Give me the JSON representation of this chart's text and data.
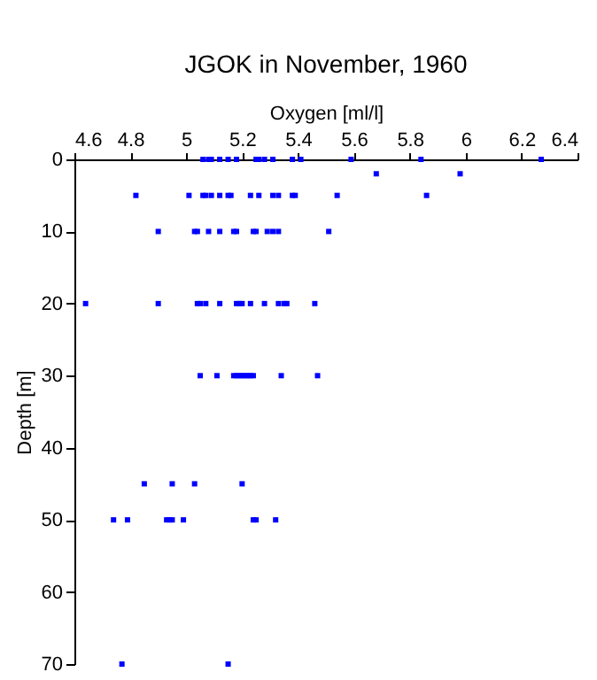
{
  "chart_data": {
    "type": "scatter",
    "title": "JGOK in November, 1960",
    "xlabel": "Oxygen [ml/l]",
    "ylabel": "Depth [m]",
    "xlim": [
      4.6,
      6.4
    ],
    "xticks": [
      4.6,
      4.8,
      5,
      5.2,
      5.4,
      5.6,
      5.8,
      6,
      6.2,
      6.4
    ],
    "ylim": [
      70,
      0
    ],
    "yticks": [
      0,
      10,
      20,
      30,
      40,
      50,
      60,
      70
    ],
    "grid": false,
    "marker": "square",
    "series": [
      {
        "color": "#0000ff",
        "x": [
          5.06,
          5.08,
          5.09,
          5.12,
          5.15,
          5.18,
          5.25,
          5.26,
          5.28,
          5.31,
          5.38,
          5.41,
          5.59,
          5.84,
          6.27,
          5.68,
          5.98,
          4.82,
          5.01,
          5.06,
          5.07,
          5.09,
          5.12,
          5.15,
          5.16,
          5.23,
          5.26,
          5.31,
          5.33,
          5.38,
          5.39,
          5.54,
          5.86,
          4.9,
          5.03,
          5.04,
          5.08,
          5.12,
          5.17,
          5.18,
          5.24,
          5.25,
          5.29,
          5.31,
          5.33,
          5.51,
          4.64,
          4.9,
          5.04,
          5.05,
          5.07,
          5.12,
          5.18,
          5.19,
          5.2,
          5.23,
          5.28,
          5.33,
          5.35,
          5.36,
          5.46,
          5.05,
          5.11,
          5.17,
          5.18,
          5.19,
          5.2,
          5.21,
          5.22,
          5.23,
          5.24,
          5.34,
          5.47,
          4.85,
          4.95,
          5.03,
          5.2,
          4.74,
          4.79,
          4.93,
          4.94,
          4.95,
          4.99,
          5.24,
          5.25,
          5.32,
          4.77,
          5.15
        ],
        "values": [
          0,
          0,
          0,
          0,
          0,
          0,
          0,
          0,
          0,
          0,
          0,
          0,
          0,
          0,
          0,
          2,
          2,
          5,
          5,
          5,
          5,
          5,
          5,
          5,
          5,
          5,
          5,
          5,
          5,
          5,
          5,
          5,
          5,
          10,
          10,
          10,
          10,
          10,
          10,
          10,
          10,
          10,
          10,
          10,
          10,
          10,
          20,
          20,
          20,
          20,
          20,
          20,
          20,
          20,
          20,
          20,
          20,
          20,
          20,
          20,
          20,
          30,
          30,
          30,
          30,
          30,
          30,
          30,
          30,
          30,
          30,
          30,
          30,
          45,
          45,
          45,
          45,
          50,
          50,
          50,
          50,
          50,
          50,
          50,
          50,
          50,
          70,
          70
        ]
      }
    ]
  }
}
